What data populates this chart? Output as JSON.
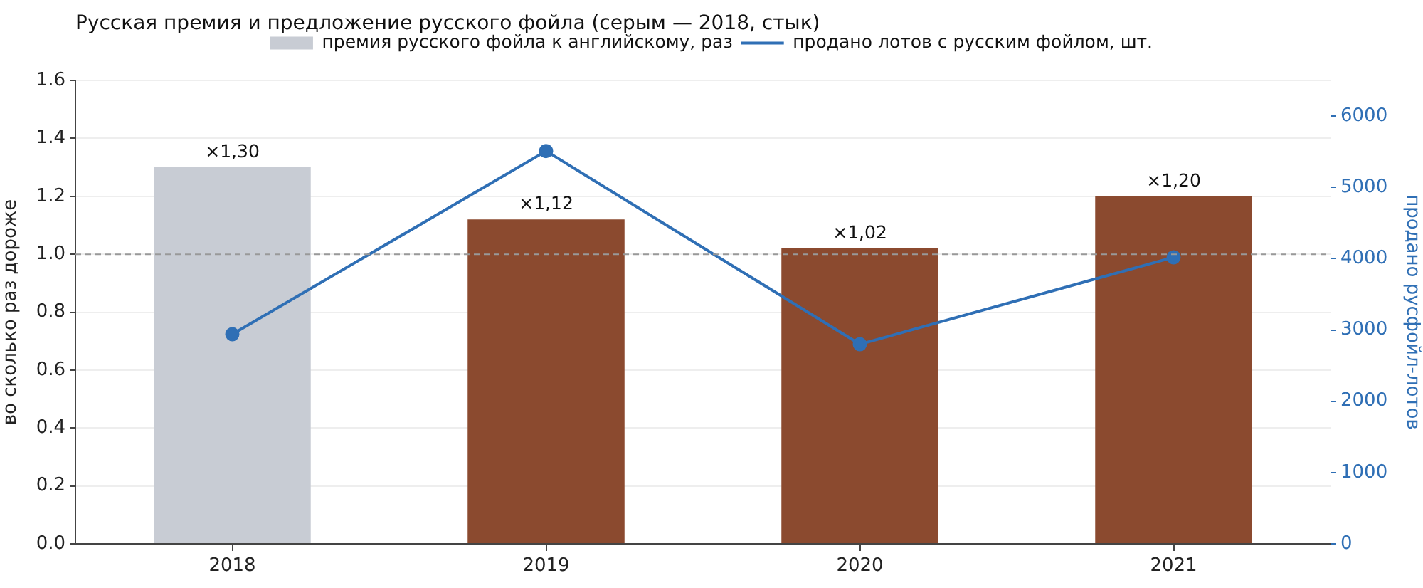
{
  "chart_data": {
    "type": "bar",
    "title": "Русская премия и предложение русского фойла (серым — 2018, стык)",
    "ylabel": "во сколько раз дороже",
    "y2label": "продано русфойл-лотов",
    "categories": [
      "2018",
      "2019",
      "2020",
      "2021"
    ],
    "series": [
      {
        "name": "премия русского фойла к английскому, раз",
        "colors": [
          "#c8ccd4",
          "#8b4a2f",
          "#8b4a2f",
          "#8b4a2f"
        ],
        "values": [
          1.3,
          1.12,
          1.02,
          1.2
        ],
        "value_labels": [
          "×1,30",
          "×1,12",
          "×1,02",
          "×1,20"
        ]
      },
      {
        "name": "продано лотов с русским фойлом, шт.",
        "type": "line",
        "axis": "y2",
        "color": "#2f6fb5",
        "values": [
          2940,
          5510,
          2800,
          4020
        ]
      }
    ],
    "ylim": [
      0,
      1.6
    ],
    "yticks": [
      {
        "value": 0,
        "label": "0.0"
      },
      0.2,
      0.4,
      0.6,
      0.8,
      {
        "value": 1,
        "label": "1.0"
      },
      1.2,
      1.4,
      1.6
    ],
    "y2lim": [
      0,
      6500
    ],
    "y2ticks": [
      0,
      1000,
      2000,
      3000,
      4000,
      5000,
      6000
    ],
    "ref_lines": [
      {
        "axis": "y",
        "value": 1,
        "color": "#999999",
        "line_style": "dashed"
      }
    ],
    "grid": "y",
    "legend": "top",
    "marker": "circle"
  }
}
